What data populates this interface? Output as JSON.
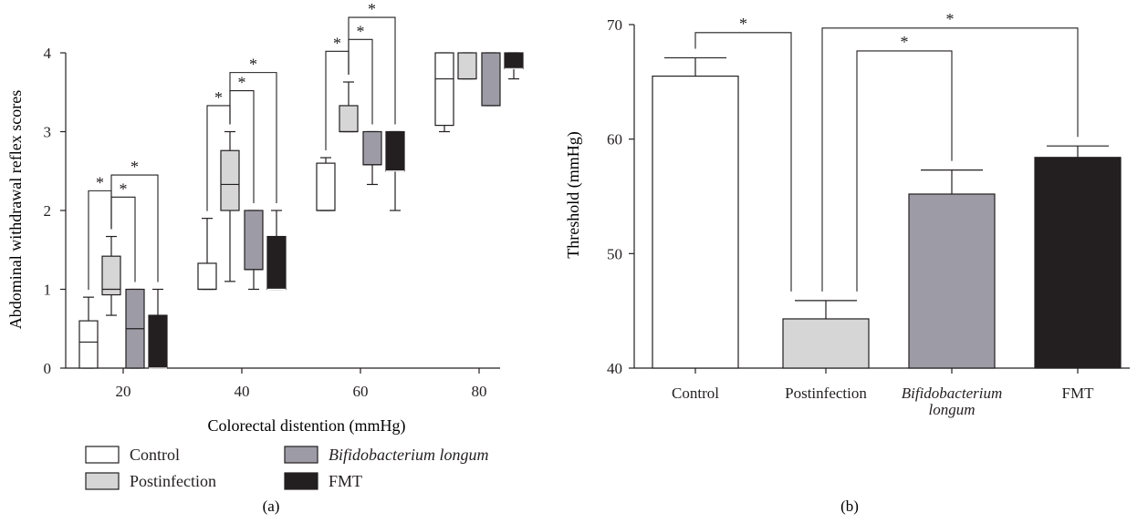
{
  "chart_data": [
    {
      "type": "box",
      "panel_label": "(a)",
      "xlabel": "Colorectal distention (mmHg)",
      "ylabel": "Abdominal withdrawal reflex scores",
      "ylim": [
        0,
        4
      ],
      "yticks": [
        "0",
        "1",
        "2",
        "3",
        "4"
      ],
      "categories": [
        "20",
        "40",
        "60",
        "80"
      ],
      "legend": [
        {
          "name": "Control",
          "italic": false
        },
        {
          "name": "Postinfection",
          "italic": false
        },
        {
          "name": "Bifidobacterium longum",
          "italic": true
        },
        {
          "name": "FMT",
          "italic": false
        }
      ],
      "colors": [
        "#ffffff",
        "#d6d6d6",
        "#9d9ca6",
        "#231f20"
      ],
      "series": [
        {
          "name": "Control",
          "boxes": [
            {
              "min": 0,
              "q1": 0,
              "median": 0.33,
              "q3": 0.6,
              "max": 0.9
            },
            {
              "min": 1.0,
              "q1": 1.0,
              "median": 1.0,
              "q3": 1.33,
              "max": 1.9
            },
            {
              "min": 2.0,
              "q1": 2.0,
              "median": 2.0,
              "q3": 2.6,
              "max": 2.67
            },
            {
              "min": 3.0,
              "q1": 3.08,
              "median": 3.67,
              "q3": 4.0,
              "max": 4.0
            }
          ]
        },
        {
          "name": "Postinfection",
          "boxes": [
            {
              "min": 0.67,
              "q1": 0.93,
              "median": 1.0,
              "q3": 1.42,
              "max": 1.67
            },
            {
              "min": 1.1,
              "q1": 2.0,
              "median": 2.33,
              "q3": 2.76,
              "max": 3.0
            },
            {
              "min": 3.0,
              "q1": 3.0,
              "median": 3.0,
              "q3": 3.33,
              "max": 3.63
            },
            {
              "min": 3.67,
              "q1": 3.67,
              "median": 3.67,
              "q3": 4.0,
              "max": 4.0
            }
          ]
        },
        {
          "name": "Bifidobacterium longum",
          "boxes": [
            {
              "min": 0,
              "q1": 0,
              "median": 0.5,
              "q3": 1.0,
              "max": 1.0
            },
            {
              "min": 1.0,
              "q1": 1.25,
              "median": 1.25,
              "q3": 2.0,
              "max": 2.0
            },
            {
              "min": 2.33,
              "q1": 2.58,
              "median": 2.58,
              "q3": 3.0,
              "max": 3.0
            },
            {
              "min": 3.33,
              "q1": 3.33,
              "median": 3.33,
              "q3": 4.0,
              "max": 4.0
            }
          ]
        },
        {
          "name": "FMT",
          "boxes": [
            {
              "min": 0,
              "q1": 0,
              "median": 0,
              "q3": 0.67,
              "max": 1.0
            },
            {
              "min": 1.0,
              "q1": 1.0,
              "median": 1.0,
              "q3": 1.67,
              "max": 2.0
            },
            {
              "min": 2.0,
              "q1": 2.5,
              "median": 2.5,
              "q3": 3.0,
              "max": 3.0
            },
            {
              "min": 3.67,
              "q1": 3.8,
              "median": 3.8,
              "q3": 4.0,
              "max": 4.0
            }
          ]
        }
      ],
      "significance": [
        {
          "group": 0,
          "from": 0,
          "to": 1,
          "label": "*",
          "y": 2.25,
          "tier": 0
        },
        {
          "group": 0,
          "from": 1,
          "to": 2,
          "label": "*",
          "y": 2.17,
          "tier": 0
        },
        {
          "group": 0,
          "from": 1,
          "to": 3,
          "label": "*",
          "y": 2.45,
          "tier": 1
        },
        {
          "group": 1,
          "from": 0,
          "to": 1,
          "label": "*",
          "y": 3.33,
          "tier": 0
        },
        {
          "group": 1,
          "from": 1,
          "to": 2,
          "label": "*",
          "y": 3.52,
          "tier": 0
        },
        {
          "group": 1,
          "from": 1,
          "to": 3,
          "label": "*",
          "y": 3.75,
          "tier": 1
        },
        {
          "group": 2,
          "from": 0,
          "to": 1,
          "label": "*",
          "y": 4.02,
          "tier": 0
        },
        {
          "group": 2,
          "from": 1,
          "to": 2,
          "label": "*",
          "y": 4.17,
          "tier": 0
        },
        {
          "group": 2,
          "from": 1,
          "to": 3,
          "label": "*",
          "y": 4.45,
          "tier": 1
        }
      ]
    },
    {
      "type": "bar",
      "panel_label": "(b)",
      "xlabel": "",
      "ylabel": "Threshold (mmHg)",
      "ylim": [
        40,
        70
      ],
      "yticks": [
        "40",
        "50",
        "60",
        "70"
      ],
      "categories": [
        {
          "lines": [
            "Control"
          ],
          "italic": false
        },
        {
          "lines": [
            "Postinfection"
          ],
          "italic": false
        },
        {
          "lines": [
            "Bifidobacterium",
            "longum"
          ],
          "italic": true
        },
        {
          "lines": [
            "FMT"
          ],
          "italic": false
        }
      ],
      "values": [
        65.5,
        44.3,
        55.2,
        58.4
      ],
      "errors": [
        1.6,
        1.6,
        2.1,
        1.0
      ],
      "colors": [
        "#ffffff",
        "#d6d6d6",
        "#9d9ca6",
        "#231f20"
      ],
      "significance": [
        {
          "from": 0,
          "to": 1,
          "label": "*",
          "y": 69.3
        },
        {
          "from": 1,
          "to": 3,
          "label": "*",
          "y": 69.7
        },
        {
          "from": 1,
          "to": 2,
          "label": "*",
          "y": 67.7
        }
      ]
    }
  ]
}
